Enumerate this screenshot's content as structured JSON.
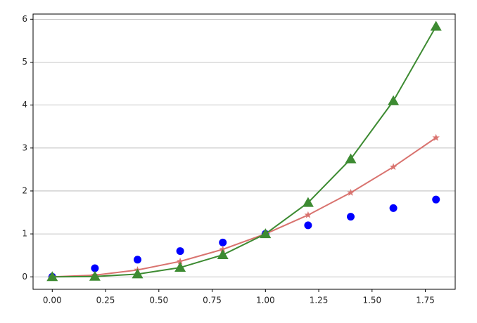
{
  "chart_data": {
    "type": "line",
    "x": [
      0,
      0.2,
      0.4,
      0.6,
      0.8,
      1.0,
      1.2,
      1.4,
      1.6,
      1.8
    ],
    "series": [
      {
        "color": "#0000ff",
        "marker": "o",
        "line": false,
        "values": [
          0,
          0.2,
          0.4,
          0.6,
          0.8,
          1.0,
          1.2,
          1.4,
          1.6,
          1.8
        ]
      },
      {
        "color": "#d9736f",
        "marker": "*",
        "line": true,
        "values": [
          0,
          0.04,
          0.16,
          0.36,
          0.64,
          1.0,
          1.44,
          1.96,
          2.56,
          3.24
        ]
      },
      {
        "color": "#3d8b32",
        "marker": "^",
        "line": true,
        "values": [
          0,
          0.008,
          0.064,
          0.216,
          0.512,
          1.0,
          1.728,
          2.744,
          4.096,
          5.832
        ]
      }
    ],
    "xlim": [
      -0.09,
      1.89
    ],
    "xticks": [
      {
        "value": 0,
        "label": "0.00"
      },
      {
        "value": 0.25,
        "label": "0.25"
      },
      {
        "value": 0.5,
        "label": "0.50"
      },
      {
        "value": 0.75,
        "label": "0.75"
      },
      {
        "value": 1.0,
        "label": "1.00"
      },
      {
        "value": 1.25,
        "label": "1.25"
      },
      {
        "value": 1.5,
        "label": "1.50"
      },
      {
        "value": 1.75,
        "label": "1.75"
      }
    ],
    "ylim": [
      -0.29,
      6.12
    ],
    "yticks": [
      0,
      1,
      2,
      3,
      4,
      5,
      6
    ],
    "grid": "y"
  }
}
